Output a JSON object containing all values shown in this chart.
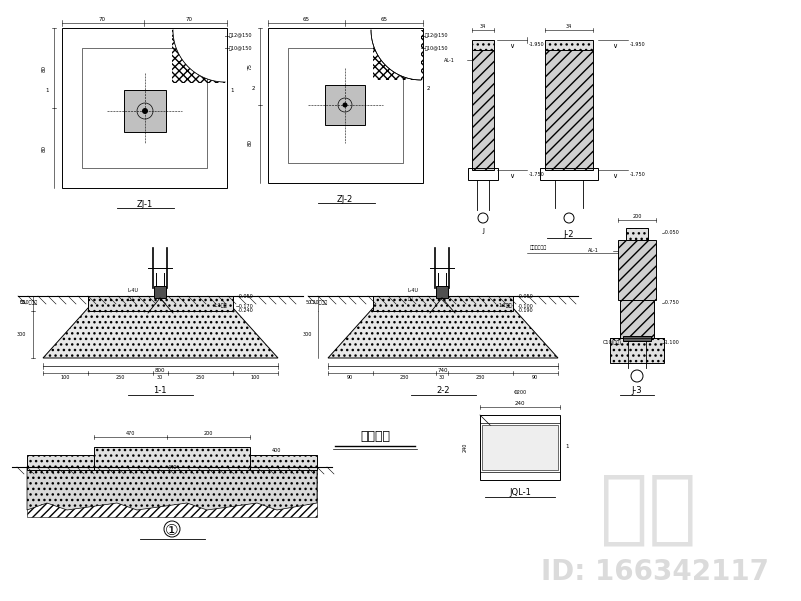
{
  "bg_color": "#ffffff",
  "watermark_color": "#c8c8c8",
  "watermark_text": "知本",
  "id_text": "ID: 166342117",
  "title": "基础详图"
}
